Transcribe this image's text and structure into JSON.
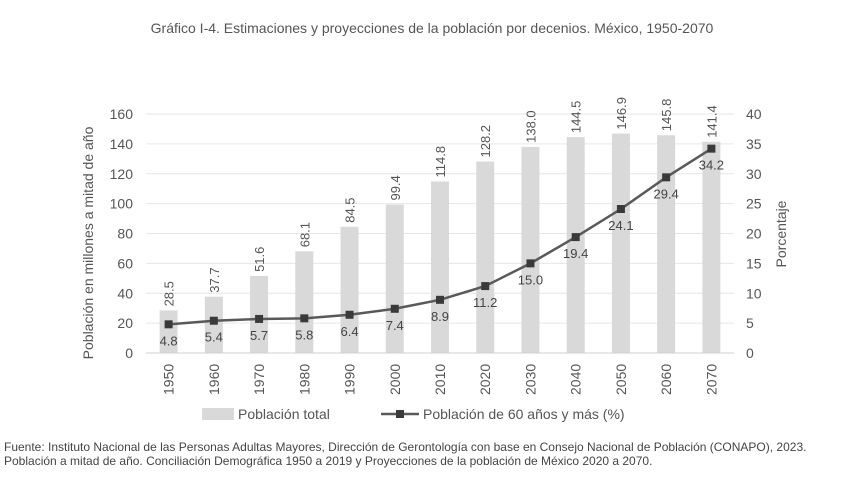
{
  "chart_data": {
    "type": "bar",
    "title": "Gráfico I-4. Estimaciones y proyecciones de la población por decenios. México, 1950-2070",
    "categories": [
      "1950",
      "1960",
      "1970",
      "1980",
      "1990",
      "2000",
      "2010",
      "2020",
      "2030",
      "2040",
      "2050",
      "2060",
      "2070"
    ],
    "ylabel": "Población en millones a mitad de año",
    "y2label": "Porcentaje",
    "ylim": [
      0,
      160
    ],
    "y2lim": [
      0,
      40
    ],
    "yticks": [
      "0",
      "20",
      "40",
      "60",
      "80",
      "100",
      "120",
      "140",
      "160"
    ],
    "y2ticks": [
      "0",
      "5",
      "10",
      "15",
      "20",
      "25",
      "30",
      "35",
      "40"
    ],
    "series": [
      {
        "name": "Población total",
        "type": "bar",
        "axis": "left",
        "color": "#d9d9d9",
        "values": [
          28.5,
          37.7,
          51.6,
          68.1,
          84.5,
          99.4,
          114.8,
          128.2,
          138.0,
          144.5,
          146.9,
          145.8,
          141.4
        ],
        "labels": [
          "28.5",
          "37.7",
          "51.6",
          "68.1",
          "84.5",
          "99.4",
          "114.8",
          "128.2",
          "138.0",
          "144.5",
          "146.9",
          "145.8",
          "141.4"
        ]
      },
      {
        "name": "Población de 60 años y más (%)",
        "type": "line",
        "axis": "right",
        "color": "#595959",
        "values": [
          4.8,
          5.4,
          5.7,
          5.8,
          6.4,
          7.4,
          8.9,
          11.2,
          15.0,
          19.4,
          24.1,
          29.4,
          34.2
        ],
        "labels": [
          "4.8",
          "5.4",
          "5.7",
          "5.8",
          "6.4",
          "7.4",
          "8.9",
          "11.2",
          "15.0",
          "19.4",
          "24.1",
          "29.4",
          "34.2"
        ]
      }
    ],
    "legend": "bottom"
  },
  "source_text": "Fuente: Instituto Nacional de las Personas Adultas Mayores, Dirección de Gerontología con base en Consejo Nacional de Población (CONAPO), 2023. Población a mitad de año. Conciliación Demográfica 1950 a 2019 y Proyecciones de la población de México 2020 a 2070."
}
